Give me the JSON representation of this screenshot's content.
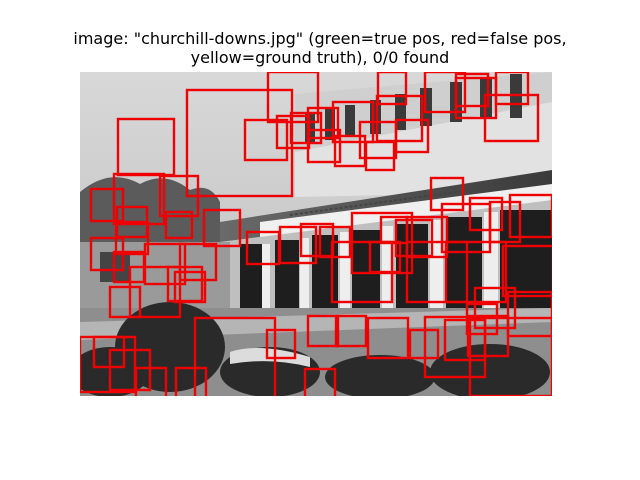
{
  "figure": {
    "title_line1": "image: \"churchill-downs.jpg\" (green=true pos, red=false pos,",
    "title_line2": "yellow=ground truth), 0/0 found"
  },
  "legend_colors": {
    "true_pos": "#00cc00",
    "false_pos": "#ee0000",
    "ground_truth": "#ffff00"
  },
  "detections": {
    "true_positive_count": 0,
    "false_positive_count": 65,
    "ground_truth_count": 0
  }
}
